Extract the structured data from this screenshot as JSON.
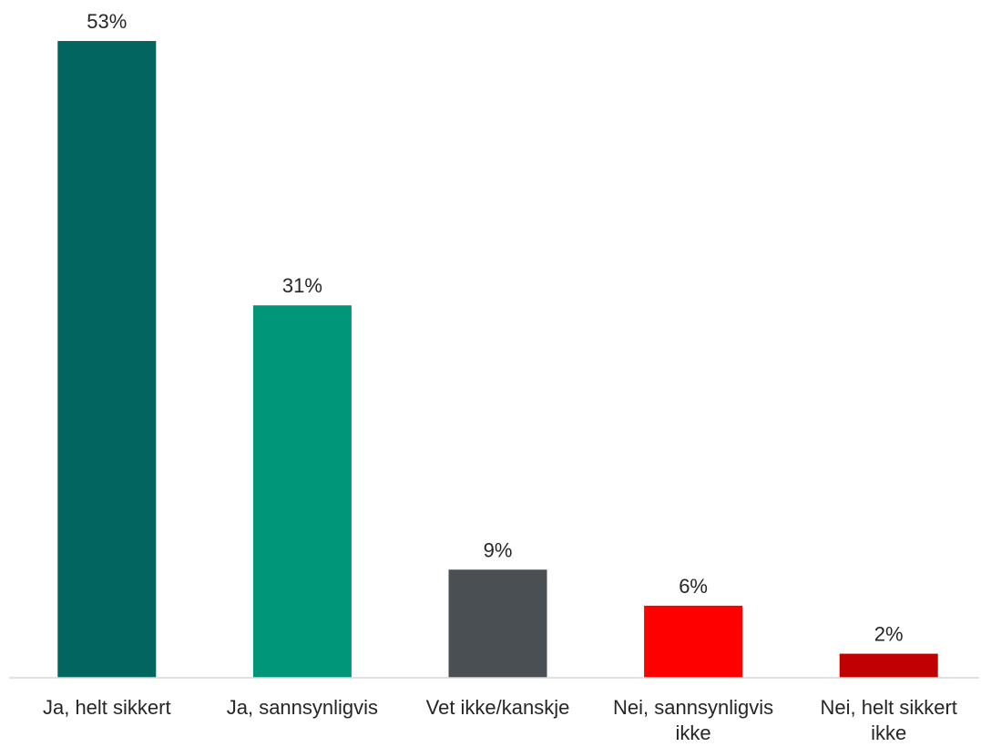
{
  "chart_data": {
    "type": "bar",
    "title": "",
    "xlabel": "",
    "ylabel": "",
    "categories": [
      "Ja, helt sikkert",
      "Ja, sannsynligvis",
      "Vet ikke/kanskje",
      "Nei, sannsynligvis ikke",
      "Nei, helt sikkert ikke"
    ],
    "values": [
      53,
      31,
      9,
      6,
      2
    ],
    "value_labels": [
      "53%",
      "31%",
      "9%",
      "6%",
      "2%"
    ],
    "colors": [
      "#00665e",
      "#009679",
      "#4a4f54",
      "#ff0000",
      "#c00000"
    ],
    "ylim": [
      0,
      53
    ],
    "grid": false,
    "legend": "none"
  }
}
